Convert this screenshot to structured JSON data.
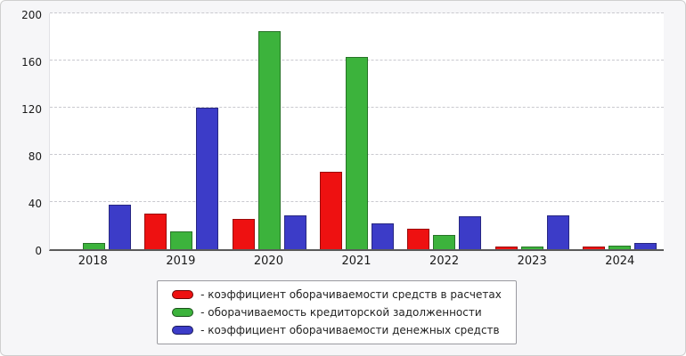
{
  "chart_data": {
    "type": "bar",
    "title": "",
    "xlabel": "",
    "ylabel": "",
    "categories": [
      "2018",
      "2019",
      "2020",
      "2021",
      "2022",
      "2023",
      "2024"
    ],
    "series": [
      {
        "name": "коэффициент оборачиваемости средств в расчетах",
        "color": "#ee1111",
        "values": [
          0,
          30,
          26,
          66,
          17,
          2,
          2
        ]
      },
      {
        "name": "оборачиваемость кредиторской задолженности",
        "color": "#3cb33c",
        "values": [
          5,
          15,
          185,
          163,
          12,
          2,
          3
        ]
      },
      {
        "name": "коэффициент оборачиваемости денежных средств",
        "color": "#3c3cc8",
        "values": [
          38,
          120,
          29,
          22,
          28,
          29,
          5
        ]
      }
    ],
    "ylim": [
      0,
      200
    ],
    "yticks": [
      0,
      40,
      80,
      120,
      160,
      200
    ],
    "grid": "horizontal-dashed",
    "legend_position": "bottom-center",
    "legend_prefix": "- "
  }
}
